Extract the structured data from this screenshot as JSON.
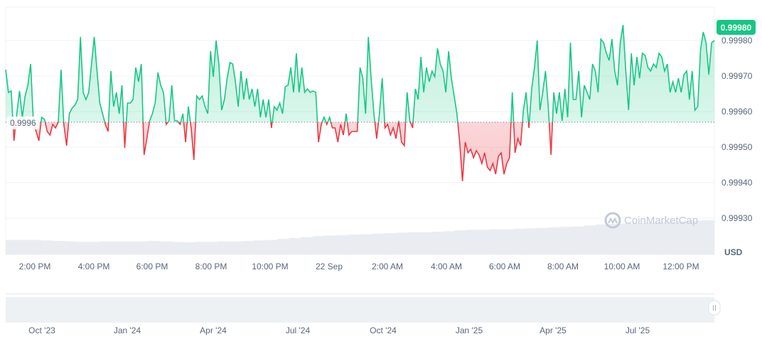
{
  "chart_data": {
    "type": "line",
    "currency_label": "USD",
    "baseline_label": "0.9996",
    "baseline_value": 0.99957,
    "current_price_label": "0.99980",
    "watermark": "CoinMarketCap",
    "ylim": [
      0.9992,
      0.9999
    ],
    "y_ticks": [
      "0.99980",
      "0.99970",
      "0.99960",
      "0.99950",
      "0.99940",
      "0.99930"
    ],
    "y_tick_values": [
      0.9998,
      0.9997,
      0.9996,
      0.9995,
      0.9994,
      0.9993
    ],
    "x_ticks": [
      "2:00 PM",
      "4:00 PM",
      "6:00 PM",
      "8:00 PM",
      "10:00 PM",
      "22 Sep",
      "2:00 AM",
      "4:00 AM",
      "6:00 AM",
      "8:00 AM",
      "10:00 AM",
      "12:00 PM"
    ],
    "navigator_ticks": [
      "Oct '23",
      "Jan '24",
      "Apr '24",
      "Jul '24",
      "Oct '24",
      "Jan '25",
      "Apr '25",
      "Jul '25"
    ],
    "colors": {
      "up": "#16c784",
      "down": "#ea3943",
      "badge": "#16c784",
      "grid": "#eff2f5",
      "volume": "#e9ecf1"
    },
    "values": [
      0.999718,
      0.999654,
      0.999658,
      0.999518,
      0.999594,
      0.999658,
      0.999584,
      0.999644,
      0.999674,
      0.999734,
      0.999574,
      0.999544,
      0.999518,
      0.999584,
      0.999578,
      0.999544,
      0.999534,
      0.999564,
      0.999554,
      0.99957,
      0.999718,
      0.999564,
      0.999504,
      0.999594,
      0.99961,
      0.999618,
      0.999634,
      0.99981,
      0.999654,
      0.999634,
      0.999654,
      0.999734,
      0.99981,
      0.999714,
      0.999624,
      0.999594,
      0.999564,
      0.999544,
      0.999714,
      0.999614,
      0.999654,
      0.999594,
      0.999674,
      0.999498,
      0.999624,
      0.999624,
      0.999634,
      0.999724,
      0.999684,
      0.999734,
      0.999478,
      0.999524,
      0.999574,
      0.999594,
      0.999624,
      0.99971,
      0.999674,
      0.999654,
      0.999564,
      0.999574,
      0.999674,
      0.999574,
      0.999574,
      0.999564,
      0.999594,
      0.999514,
      0.999614,
      0.999554,
      0.999464,
      0.999644,
      0.999634,
      0.999644,
      0.999614,
      0.999594,
      0.99977,
      0.999698,
      0.9998,
      0.999734,
      0.999604,
      0.999634,
      0.999694,
      0.999738,
      0.999734,
      0.999684,
      0.999614,
      0.999714,
      0.999634,
      0.999694,
      0.999634,
      0.999664,
      0.999614,
      0.999664,
      0.999584,
      0.999634,
      0.999584,
      0.999634,
      0.999554,
      0.999614,
      0.999604,
      0.999624,
      0.999594,
      0.99967,
      0.999674,
      0.999724,
      0.999654,
      0.999764,
      0.999654,
      0.999724,
      0.999654,
      0.999664,
      0.999654,
      0.999658,
      0.999654,
      0.999514,
      0.999564,
      0.999584,
      0.999564,
      0.999584,
      0.999554,
      0.999554,
      0.999514,
      0.999564,
      0.999534,
      0.999594,
      0.999534,
      0.999544,
      0.999544,
      0.999544,
      0.999724,
      0.999694,
      0.999594,
      0.99981,
      0.999694,
      0.999594,
      0.999524,
      0.999594,
      0.999694,
      0.999554,
      0.999564,
      0.999534,
      0.999554,
      0.999524,
      0.999574,
      0.999514,
      0.999504,
      0.999654,
      0.999574,
      0.999554,
      0.999664,
      0.999634,
      0.999754,
      0.999654,
      0.999724,
      0.999684,
      0.999714,
      0.999698,
      0.999778,
      0.999734,
      0.999714,
      0.999654,
      0.99977,
      0.999694,
      0.999644,
      0.999594,
      0.999514,
      0.999404,
      0.999514,
      0.999484,
      0.999494,
      0.99947,
      0.99949,
      0.999478,
      0.999454,
      0.999484,
      0.999444,
      0.999434,
      0.999454,
      0.999424,
      0.999474,
      0.999484,
      0.999424,
      0.999454,
      0.99947,
      0.999654,
      0.999484,
      0.999524,
      0.999504,
      0.999604,
      0.999654,
      0.999554,
      0.999664,
      0.999724,
      0.9998,
      0.999604,
      0.999654,
      0.999714,
      0.999614,
      0.999478,
      0.999654,
      0.999594,
      0.999654,
      0.999574,
      0.999664,
      0.999584,
      0.999794,
      0.999634,
      0.999634,
      0.999714,
      0.999584,
      0.999674,
      0.999654,
      0.999634,
      0.999734,
      0.999714,
      0.999654,
      0.999804,
      0.999794,
      0.999764,
      0.999744,
      0.999804,
      0.999714,
      0.999674,
      0.999794,
      0.999844,
      0.999714,
      0.999604,
      0.999764,
      0.999674,
      0.999754,
      0.999694,
      0.999764,
      0.999758,
      0.999724,
      0.999714,
      0.999734,
      0.999724,
      0.999764,
      0.999754,
      0.999714,
      0.999734,
      0.999654,
      0.999684,
      0.999654,
      0.999694,
      0.999654,
      0.999704,
      0.999714,
      0.999634,
      0.999714,
      0.999604,
      0.999614,
      0.999774,
      0.999824,
      0.999794,
      0.999704,
      0.999794,
      0.9998
    ],
    "volume_relative": [
      0.3,
      0.3,
      0.3,
      0.29,
      0.28,
      0.27,
      0.26,
      0.26,
      0.27,
      0.27,
      0.27,
      0.27,
      0.28,
      0.27,
      0.26,
      0.25,
      0.26,
      0.26,
      0.27,
      0.27,
      0.28,
      0.29,
      0.3,
      0.32,
      0.34,
      0.36,
      0.38,
      0.39,
      0.4,
      0.41,
      0.42,
      0.43,
      0.44,
      0.45,
      0.46,
      0.46,
      0.47,
      0.48,
      0.5,
      0.51,
      0.51,
      0.52,
      0.52,
      0.53,
      0.54,
      0.55,
      0.56,
      0.57,
      0.58,
      0.6,
      0.62,
      0.63,
      0.64,
      0.65,
      0.66,
      0.67,
      0.68,
      0.69,
      0.7,
      0.71
    ]
  }
}
